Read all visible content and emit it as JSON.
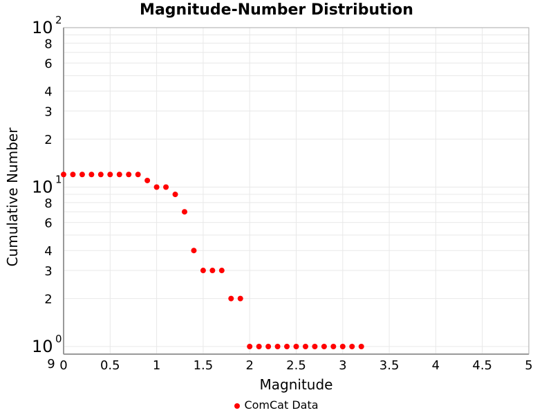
{
  "chart_data": {
    "type": "scatter",
    "title": "Magnitude-Number Distribution",
    "xlabel": "Magnitude",
    "ylabel": "Cumulative Number",
    "xlim": [
      0,
      5
    ],
    "ylim": [
      0.9,
      100
    ],
    "yscale": "log",
    "grid": true,
    "legend_placement": "bottom",
    "x_ticks": [
      "0",
      "0.5",
      "1",
      "1.5",
      "2",
      "2.5",
      "3",
      "3.5",
      "4",
      "4.5",
      "5"
    ],
    "y_minor_labels": [
      "2",
      "3",
      "4",
      "6",
      "8"
    ],
    "y_bottom_label": "9",
    "series": [
      {
        "name": "ComCat Data",
        "color": "#ff0000",
        "x": [
          0,
          0.1,
          0.2,
          0.3,
          0.4,
          0.5,
          0.6,
          0.7,
          0.8,
          0.9,
          1.0,
          1.1,
          1.2,
          1.3,
          1.4,
          1.5,
          1.6,
          1.7,
          1.8,
          1.9,
          2.0,
          2.1,
          2.2,
          2.3,
          2.4,
          2.5,
          2.6,
          2.7,
          2.8,
          2.9,
          3.0,
          3.1,
          3.2
        ],
        "y": [
          12,
          12,
          12,
          12,
          12,
          12,
          12,
          12,
          12,
          11,
          10,
          10,
          9,
          7,
          4,
          3,
          3,
          3,
          2,
          2,
          1,
          1,
          1,
          1,
          1,
          1,
          1,
          1,
          1,
          1,
          1,
          1,
          1
        ]
      }
    ]
  }
}
